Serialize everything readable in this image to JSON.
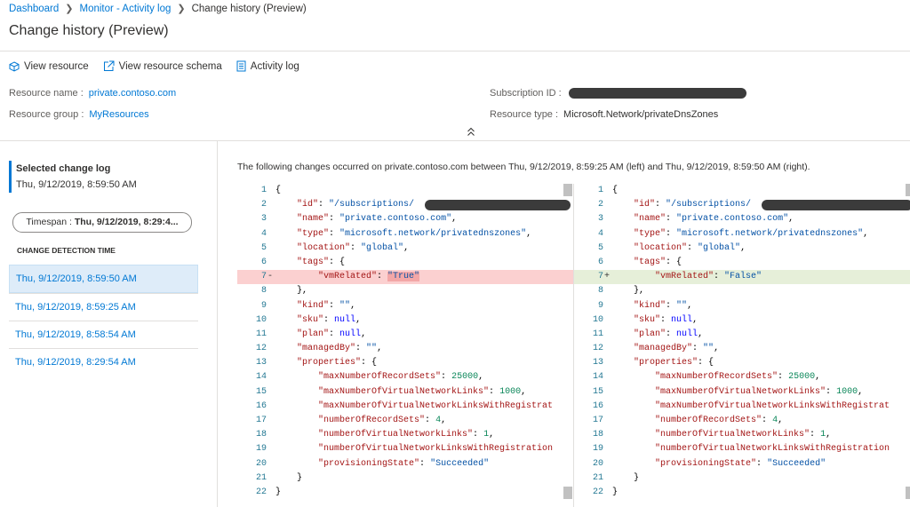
{
  "breadcrumb": [
    "Dashboard",
    "Monitor - Activity log",
    "Change history (Preview)"
  ],
  "title": "Change history (Preview)",
  "toolbar": [
    "View resource",
    "View resource schema",
    "Activity log"
  ],
  "resource": {
    "name_label": "Resource name :",
    "name": "private.contoso.com",
    "group_label": "Resource group :",
    "group": "MyResources",
    "subscription_label": "Subscription ID :",
    "type_label": "Resource type :",
    "type": "Microsoft.Network/privateDnsZones"
  },
  "sidebar": {
    "selected_label": "Selected change log",
    "selected_time": "Thu, 9/12/2019, 8:59:50 AM",
    "timespan_label": "Timespan :",
    "timespan_value": "Thu, 9/12/2019, 8:29:4...",
    "list_header": "CHANGE DETECTION TIME",
    "items": [
      "Thu, 9/12/2019, 8:59:50 AM",
      "Thu, 9/12/2019, 8:59:25 AM",
      "Thu, 9/12/2019, 8:58:54 AM",
      "Thu, 9/12/2019, 8:29:54 AM"
    ]
  },
  "description": "The following changes occurred on private.contoso.com between Thu, 9/12/2019, 8:59:25 AM (left) and Thu, 9/12/2019, 8:59:50 AM (right).",
  "editors": [
    {
      "lines": [
        {
          "number": 1,
          "tokens": [
            "{"
          ]
        },
        {
          "number": 2,
          "tokens": [
            "    ",
            "\"id\"",
            ": ",
            "\"/subscriptions/"
          ]
        },
        {
          "number": 3,
          "tokens": [
            "    ",
            "\"name\"",
            ": ",
            "\"private.contoso.com\"",
            ","
          ]
        },
        {
          "number": 4,
          "tokens": [
            "    ",
            "\"type\"",
            ": ",
            "\"microsoft.network/privatednszones\"",
            ","
          ]
        },
        {
          "number": 5,
          "tokens": [
            "    ",
            "\"location\"",
            ": ",
            "\"global\"",
            ","
          ]
        },
        {
          "number": 6,
          "tokens": [
            "    ",
            "\"tags\"",
            ": {"
          ]
        },
        {
          "number": 7,
          "marker": "-",
          "tokens": [
            "        ",
            "\"vmRelated\"",
            ": ",
            "\"True\""
          ]
        },
        {
          "number": 8,
          "tokens": [
            "    ",
            "},"
          ]
        },
        {
          "number": 9,
          "tokens": [
            "    ",
            "\"kind\"",
            ": ",
            "\"\"",
            ","
          ]
        },
        {
          "number": 10,
          "tokens": [
            "    ",
            "\"sku\"",
            ": ",
            "null",
            ","
          ]
        },
        {
          "number": 11,
          "tokens": [
            "    ",
            "\"plan\"",
            ": ",
            "null",
            ","
          ]
        },
        {
          "number": 12,
          "tokens": [
            "    ",
            "\"managedBy\"",
            ": ",
            "\"\"",
            ","
          ]
        },
        {
          "number": 13,
          "tokens": [
            "    ",
            "\"properties\"",
            ": {"
          ]
        },
        {
          "number": 14,
          "tokens": [
            "        ",
            "\"maxNumberOfRecordSets\"",
            ": ",
            "25000",
            ","
          ]
        },
        {
          "number": 15,
          "tokens": [
            "        ",
            "\"maxNumberOfVirtualNetworkLinks\"",
            ": ",
            "1000",
            ","
          ]
        },
        {
          "number": 16,
          "tokens": [
            "        ",
            "\"maxNumberOfVirtualNetworkLinksWithRegistrat"
          ]
        },
        {
          "number": 17,
          "tokens": [
            "        ",
            "\"numberOfRecordSets\"",
            ": ",
            "4",
            ","
          ]
        },
        {
          "number": 18,
          "tokens": [
            "        ",
            "\"numberOfVirtualNetworkLinks\"",
            ": ",
            "1",
            ","
          ]
        },
        {
          "number": 19,
          "tokens": [
            "        ",
            "\"numberOfVirtualNetworkLinksWithRegistration"
          ]
        },
        {
          "number": 20,
          "tokens": [
            "        ",
            "\"provisioningState\"",
            ": ",
            "\"Succeeded\""
          ]
        },
        {
          "number": 21,
          "tokens": [
            "    ",
            "}"
          ]
        },
        {
          "number": 22,
          "tokens": [
            "}"
          ]
        }
      ]
    },
    {
      "lines": [
        {
          "number": 1,
          "tokens": [
            "{"
          ]
        },
        {
          "number": 2,
          "tokens": [
            "    ",
            "\"id\"",
            ": ",
            "\"/subscriptions/"
          ]
        },
        {
          "number": 3,
          "tokens": [
            "    ",
            "\"name\"",
            ": ",
            "\"private.contoso.com\"",
            ","
          ]
        },
        {
          "number": 4,
          "tokens": [
            "    ",
            "\"type\"",
            ": ",
            "\"microsoft.network/privatednszones\"",
            ","
          ]
        },
        {
          "number": 5,
          "tokens": [
            "    ",
            "\"location\"",
            ": ",
            "\"global\"",
            ","
          ]
        },
        {
          "number": 6,
          "tokens": [
            "    ",
            "\"tags\"",
            ": {"
          ]
        },
        {
          "number": 7,
          "marker": "+",
          "tokens": [
            "        ",
            "\"vmRelated\"",
            ": ",
            "\"False\""
          ]
        },
        {
          "number": 8,
          "tokens": [
            "    ",
            "},"
          ]
        },
        {
          "number": 9,
          "tokens": [
            "    ",
            "\"kind\"",
            ": ",
            "\"\"",
            ","
          ]
        },
        {
          "number": 10,
          "tokens": [
            "    ",
            "\"sku\"",
            ": ",
            "null",
            ","
          ]
        },
        {
          "number": 11,
          "tokens": [
            "    ",
            "\"plan\"",
            ": ",
            "null",
            ","
          ]
        },
        {
          "number": 12,
          "tokens": [
            "    ",
            "\"managedBy\"",
            ": ",
            "\"\"",
            ","
          ]
        },
        {
          "number": 13,
          "tokens": [
            "    ",
            "\"properties\"",
            ": {"
          ]
        },
        {
          "number": 14,
          "tokens": [
            "        ",
            "\"maxNumberOfRecordSets\"",
            ": ",
            "25000",
            ","
          ]
        },
        {
          "number": 15,
          "tokens": [
            "        ",
            "\"maxNumberOfVirtualNetworkLinks\"",
            ": ",
            "1000",
            ","
          ]
        },
        {
          "number": 16,
          "tokens": [
            "        ",
            "\"maxNumberOfVirtualNetworkLinksWithRegistrat"
          ]
        },
        {
          "number": 17,
          "tokens": [
            "        ",
            "\"numberOfRecordSets\"",
            ": ",
            "4",
            ","
          ]
        },
        {
          "number": 18,
          "tokens": [
            "        ",
            "\"numberOfVirtualNetworkLinks\"",
            ": ",
            "1",
            ","
          ]
        },
        {
          "number": 19,
          "tokens": [
            "        ",
            "\"numberOfVirtualNetworkLinksWithRegistration"
          ]
        },
        {
          "number": 20,
          "tokens": [
            "        ",
            "\"provisioningState\"",
            ": ",
            "\"Succeeded\""
          ]
        },
        {
          "number": 21,
          "tokens": [
            "    ",
            "}"
          ]
        },
        {
          "number": 22,
          "tokens": [
            "}"
          ]
        }
      ]
    }
  ]
}
